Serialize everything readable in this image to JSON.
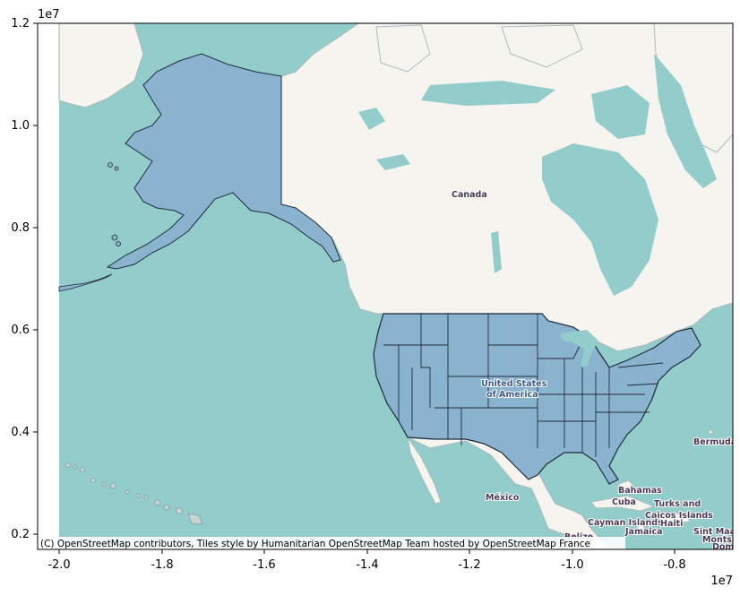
{
  "figure": {
    "y_exponent": "1e7",
    "x_exponent": "1e7"
  },
  "axes": {
    "xlim": [
      -2.0,
      -0.7
    ],
    "ylim": [
      0.17,
      1.2
    ],
    "x_ticks": [
      "-2.0",
      "-1.8",
      "-1.6",
      "-1.4",
      "-1.2",
      "-1.0",
      "-0.8"
    ],
    "y_ticks": [
      "0.2",
      "0.4",
      "0.6",
      "0.8",
      "1.0",
      "1.2"
    ]
  },
  "basemap": {
    "water_color": "#92cccb",
    "land_color": "#f5f4ef",
    "states_fill": "#8ab3cf",
    "states_edge": "#1f2a3a",
    "labels": {
      "canada": "Canada",
      "usa_line1": "United States",
      "usa_line2": "of America",
      "mexico": "México",
      "bermuda": "Bermuda",
      "bahamas": "Bahamas",
      "cuba": "Cuba",
      "turks_line1": "Turks and",
      "turks_line2": "Caicos Islands",
      "cayman": "Cayman Islands",
      "haiti": "Haiti",
      "jamaica": "Jamaica",
      "belize": "Belize",
      "sint_maarten": "Sint Maa",
      "montserrat": "Monts",
      "dominica": "Dom"
    },
    "attribution": "(C) OpenStreetMap contributors, Tiles style by Humanitarian OpenStreetMap Team hosted by OpenStreetMap France"
  }
}
